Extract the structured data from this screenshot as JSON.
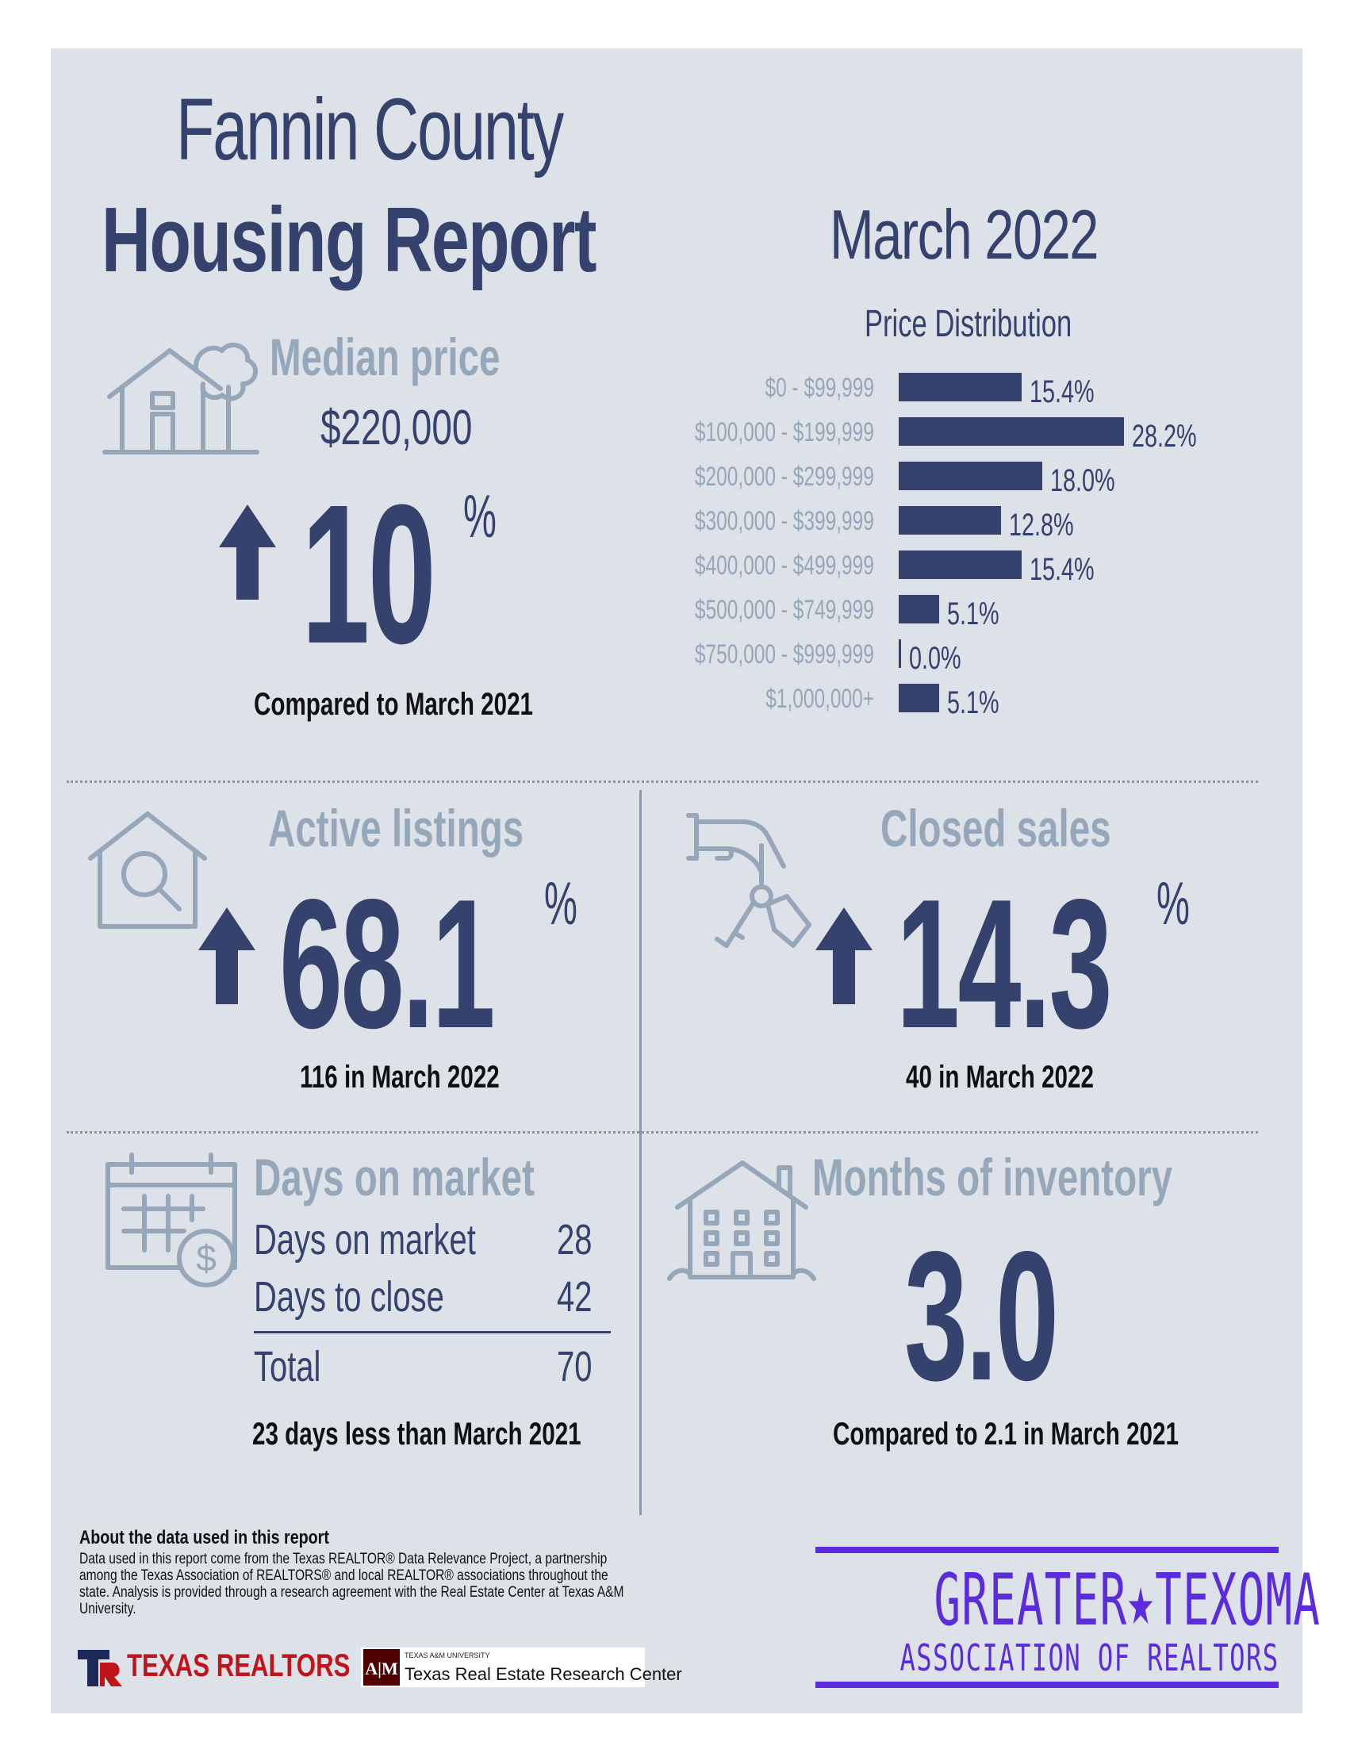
{
  "header": {
    "title_line1": "Fannin County",
    "title_line2": "Housing Report",
    "period": "March 2022"
  },
  "median_price": {
    "heading": "Median price",
    "value": "$220,000",
    "change": "10",
    "unit": "%",
    "direction": "up",
    "caption": "Compared to March 2021"
  },
  "price_distribution": {
    "title": "Price Distribution",
    "chart_data": {
      "type": "bar",
      "title": "Price Distribution",
      "categories": [
        "$0 - $99,999",
        "$100,000 - $199,999",
        "$200,000 - $299,999",
        "$300,000 - $399,999",
        "$400,000 - $499,999",
        "$500,000 - $749,999",
        "$750,000 - $999,999",
        "$1,000,000+"
      ],
      "values": [
        15.4,
        28.2,
        18.0,
        12.8,
        15.4,
        5.1,
        0.0,
        5.1
      ],
      "value_labels": [
        "15.4%",
        "28.2%",
        "18.0%",
        "12.8%",
        "15.4%",
        "5.1%",
        "0.0%",
        "5.1%"
      ],
      "orientation": "horizontal",
      "bar_color": "#34426d"
    }
  },
  "active_listings": {
    "heading": "Active listings",
    "change": "68.1",
    "unit": "%",
    "direction": "up",
    "caption": "116 in March 2022"
  },
  "closed_sales": {
    "heading": "Closed sales",
    "change": "14.3",
    "unit": "%",
    "direction": "up",
    "caption": "40 in March 2022"
  },
  "days_on_market": {
    "heading": "Days on market",
    "rows": [
      {
        "label": "Days on market",
        "value": "28"
      },
      {
        "label": "Days to close",
        "value": "42"
      }
    ],
    "total_label": "Total",
    "total_value": "70",
    "caption": "23 days less than March 2021"
  },
  "months_inventory": {
    "heading": "Months of inventory",
    "value": "3.0",
    "caption": "Compared to 2.1 in March 2021"
  },
  "footer": {
    "about_heading": "About the data used in this report",
    "about_body": "Data used in this report come from the Texas REALTOR® Data Relevance Project, a partnership among the Texas Association of REALTORS® and local REALTOR® associations throughout the state. Analysis is provided through a research agreement with the Real Estate Center at Texas A&M University.",
    "texas_realtors": "TEXAS REALTORS",
    "tamu_small": "TEXAS A&M UNIVERSITY",
    "tamu_name": "Texas Real Estate Research Center",
    "gt_line1": "GREATER★TEXOMA",
    "gt_line2": "ASSOCIATION OF REALTORS"
  },
  "colors": {
    "navy": "#34426d",
    "gray_blue": "#96a7ba",
    "panel": "#dde1e8",
    "texas_red": "#c0141b",
    "texoma_purple": "#5b2cdb"
  },
  "icons": [
    "house-tree-icon",
    "house-search-icon",
    "hand-keys-icon",
    "calendar-dollar-icon",
    "apartment-building-icon",
    "up-arrow-icon",
    "texas-realtors-logo",
    "tamu-logo"
  ]
}
